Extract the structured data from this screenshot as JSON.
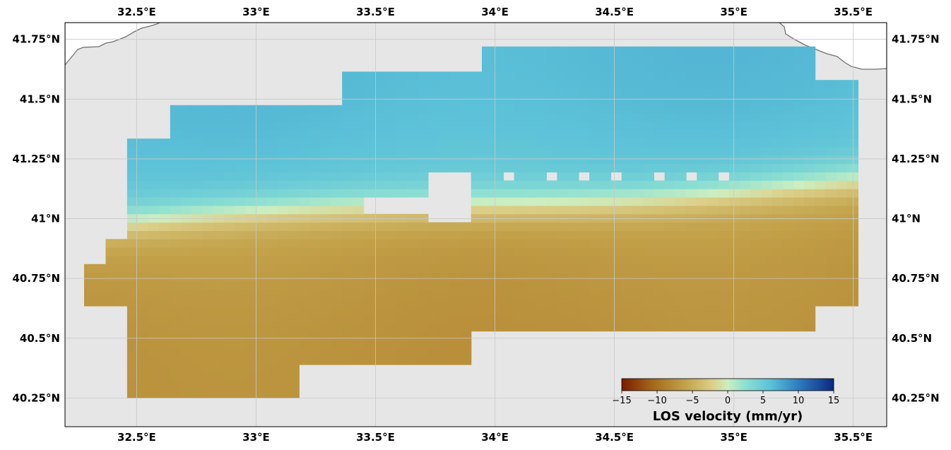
{
  "map": {
    "lon_range": [
      32.2,
      35.64
    ],
    "lat_range": [
      40.13,
      41.82
    ],
    "lon_ticks": [
      32.5,
      33.0,
      33.5,
      34.0,
      34.5,
      35.0,
      35.5
    ],
    "lat_ticks": [
      41.75,
      41.5,
      41.25,
      41.0,
      40.75,
      40.5,
      40.25
    ],
    "lon_tick_labels": [
      "32.5°E",
      "33°E",
      "33.5°E",
      "34°E",
      "34.5°E",
      "35°E",
      "35.5°E"
    ],
    "lat_tick_labels": [
      "41.75°N",
      "41.5°N",
      "41.25°N",
      "41°N",
      "40.75°N",
      "40.5°N",
      "40.25°N"
    ],
    "background_color": "#e6e6e6",
    "gridline_color": "#c8c8c8",
    "coastline_color": "#707070",
    "land_color": "#ffffff"
  },
  "colorbar": {
    "label": "LOS velocity (mm/yr)",
    "min": -15,
    "max": 15,
    "ticks": [
      -15,
      -10,
      -5,
      0,
      5,
      10,
      15
    ],
    "tick_labels": [
      "−15",
      "−10",
      "−5",
      "0",
      "5",
      "10",
      "15"
    ],
    "colormap": "roma-like (brown → beige → cyan → blue)"
  }
}
